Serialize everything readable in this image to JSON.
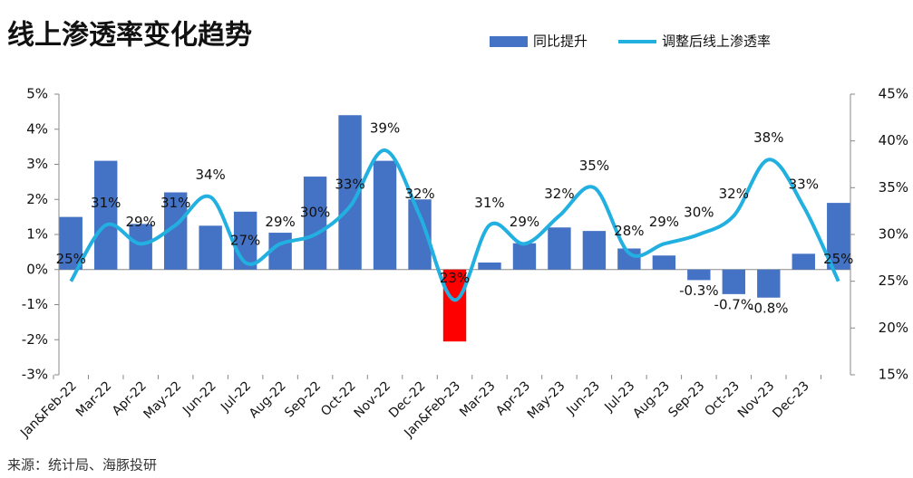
{
  "chart_data": {
    "type": "bar_line",
    "title": "线上渗透率变化趋势",
    "source": "来源：统计局、海豚投研",
    "categories": [
      "Jan&Feb-22",
      "Mar-22",
      "Apr-22",
      "May-22",
      "Jun-22",
      "Jul-22",
      "Aug-22",
      "Sep-22",
      "Oct-22",
      "Nov-22",
      "Dec-22",
      "Jan&Feb-23",
      "Mar-23",
      "Apr-23",
      "May-23",
      "Jun-23",
      "Jul-23",
      "Aug-23",
      "Sep-23",
      "Oct-23",
      "Nov-23",
      "Dec-23",
      null
    ],
    "series": [
      {
        "name": "同比提升",
        "type": "bar",
        "color": "#4472c4",
        "colors": [
          "#4472c4",
          "#4472c4",
          "#4472c4",
          "#4472c4",
          "#4472c4",
          "#4472c4",
          "#4472c4",
          "#4472c4",
          "#4472c4",
          "#4472c4",
          "#4472c4",
          "#ff0000",
          "#4472c4",
          "#4472c4",
          "#4472c4",
          "#4472c4",
          "#4472c4",
          "#4472c4",
          "#4472c4",
          "#4472c4",
          "#4472c4",
          "#4472c4",
          "#4472c4"
        ],
        "values": [
          1.5,
          3.1,
          1.3,
          2.2,
          1.25,
          1.65,
          1.05,
          2.65,
          4.4,
          3.1,
          2.0,
          -2.05,
          0.2,
          0.75,
          1.2,
          1.1,
          0.6,
          0.4,
          -0.3,
          -0.7,
          -0.8,
          0.45,
          1.9
        ],
        "value_labels": [
          null,
          null,
          null,
          null,
          null,
          null,
          null,
          null,
          null,
          null,
          null,
          null,
          null,
          null,
          null,
          null,
          null,
          null,
          "-0.3%",
          "-0.7%",
          "-0.8%",
          null,
          null
        ]
      },
      {
        "name": "调整后线上渗透率",
        "type": "line",
        "axis": "y2",
        "color": "#22b0e0",
        "values": [
          25,
          31,
          29,
          31,
          34,
          27,
          29,
          30,
          33,
          39,
          32,
          23,
          31,
          29,
          32,
          35,
          28,
          29,
          30,
          32,
          38,
          33,
          25
        ],
        "value_labels": [
          "25%",
          "31%",
          "29%",
          "31%",
          "34%",
          "27%",
          "29%",
          "30%",
          "33%",
          "39%",
          "32%",
          "23%",
          "31%",
          "29%",
          "32%",
          "35%",
          "28%",
          "29%",
          "30%",
          "32%",
          "38%",
          "33%",
          "25%"
        ]
      }
    ],
    "ylim": [
      -3,
      5
    ],
    "yticks": [
      {
        "value": -3,
        "label": "-3%"
      },
      {
        "value": -2,
        "label": "-2%"
      },
      {
        "value": -1,
        "label": "-1%"
      },
      {
        "value": 0,
        "label": "0%"
      },
      {
        "value": 1,
        "label": "1%"
      },
      {
        "value": 2,
        "label": "2%"
      },
      {
        "value": 3,
        "label": "3%"
      },
      {
        "value": 4,
        "label": "4%"
      },
      {
        "value": 5,
        "label": "5%"
      }
    ],
    "y2lim": [
      15,
      45
    ],
    "y2ticks": [
      {
        "value": 15,
        "label": "15%"
      },
      {
        "value": 20,
        "label": "20%"
      },
      {
        "value": 25,
        "label": "25%"
      },
      {
        "value": 30,
        "label": "30%"
      },
      {
        "value": 35,
        "label": "35%"
      },
      {
        "value": 40,
        "label": "40%"
      },
      {
        "value": 45,
        "label": "45%"
      }
    ],
    "legend": "top-right"
  }
}
